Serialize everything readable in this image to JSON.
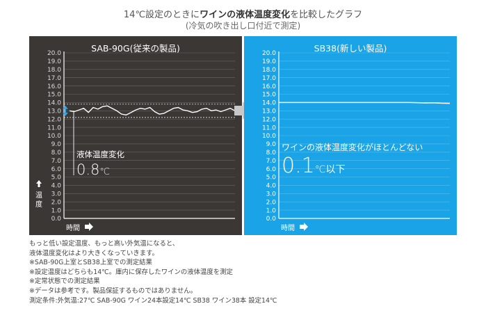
{
  "heading": {
    "line1_pre": "14℃設定のときに",
    "line1_em": "ワインの液体温度変化",
    "line1_post": "を比較したグラフ",
    "line2": "(冷気の吹き出し口付近で測定)"
  },
  "chart_data": [
    {
      "type": "line",
      "title": "SAB-90G(従来の製品)",
      "xlabel": "時間",
      "ylabel": "温度",
      "ylim": [
        0,
        20
      ],
      "yticks": [
        "0.0",
        "1.0",
        "2.0",
        "3.0",
        "4.0",
        "5.0",
        "6.0",
        "7.0",
        "8.0",
        "9.0",
        "10.0",
        "11.0",
        "12.0",
        "13.0",
        "14.0",
        "15.0",
        "16.0",
        "17.0",
        "18.0",
        "19.0",
        "20.0"
      ],
      "grid": true,
      "band": [
        12.2,
        13.8
      ],
      "series": [
        {
          "values": [
            13.0,
            12.9,
            13.1,
            13.3,
            12.8,
            13.4,
            13.2,
            13.5,
            13.6,
            13.3,
            13.0,
            12.6,
            12.5,
            12.8,
            13.1,
            13.3,
            13.2,
            13.4,
            12.9,
            12.6,
            12.7,
            13.0,
            13.3,
            13.4,
            13.1,
            13.0,
            12.8,
            12.9,
            13.2,
            13.3,
            13.0,
            13.1,
            12.9,
            13.1,
            13.3,
            13.0
          ]
        }
      ],
      "annotation_label": "液体温度変化",
      "annotation_value": "0.8",
      "annotation_unit": "℃"
    },
    {
      "type": "line",
      "title": "SB38(新しい製品)",
      "xlabel": "時間",
      "ylabel": "",
      "ylim": [
        0,
        20
      ],
      "yticks": [
        "0.0",
        "1.0",
        "2.0",
        "3.0",
        "4.0",
        "5.0",
        "6.0",
        "7.0",
        "8.0",
        "9.0",
        "10.0",
        "11.0",
        "12.0",
        "13.0",
        "14.0",
        "15.0",
        "16.0",
        "17.0",
        "18.0",
        "19.0",
        "20.0"
      ],
      "grid": true,
      "series": [
        {
          "values": [
            14.0,
            14.0,
            14.0,
            14.0,
            14.0,
            14.0,
            14.0,
            14.0,
            14.0,
            14.0,
            14.0,
            14.0,
            14.0,
            14.0,
            14.0,
            14.0,
            14.0,
            13.98,
            13.95,
            13.97,
            13.92,
            13.9
          ]
        }
      ],
      "annotation_label": "ワインの液体温度変化がほとんどない",
      "annotation_value": "0.1",
      "annotation_unit": "℃以下"
    }
  ],
  "notes": [
    "もっと低い設定温度、もっと高い外気温になると、",
    "液体温度変化はより大きくなっていきます。",
    "※SAB-90G上室とSB38上室での測定結果",
    "※設定温度はどちらも14℃。庫内に保存したワインの液体温度を測定",
    "※定常状態での測定結果",
    "※データは参考です。製品保証するものではありません。",
    "測定条件:外気温:27℃ SAB-90G ワイン24本設定14℃ SB38 ワイン38本 設定14℃"
  ]
}
